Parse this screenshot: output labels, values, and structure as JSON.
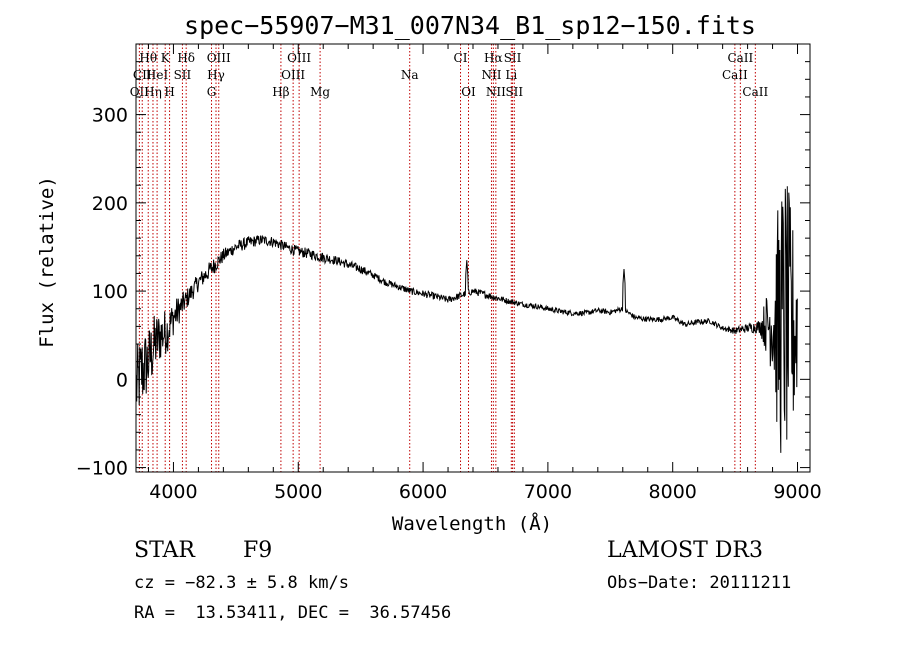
{
  "chart_data": {
    "type": "line",
    "title": "spec−55907−M31_007N34_B1_sp12−150.fits",
    "xlabel": "Wavelength (Å)",
    "ylabel": "Flux (relative)",
    "xlim": [
      3700,
      9100
    ],
    "ylim": [
      -105,
      380
    ],
    "x_ticks": [
      {
        "value": 4000,
        "label": "4000"
      },
      {
        "value": 5000,
        "label": "5000"
      },
      {
        "value": 6000,
        "label": "6000"
      },
      {
        "value": 7000,
        "label": "7000"
      },
      {
        "value": 8000,
        "label": "8000"
      },
      {
        "value": 9000,
        "label": "9000"
      }
    ],
    "y_ticks": [
      {
        "value": -100,
        "label": "−100"
      },
      {
        "value": 0,
        "label": "0"
      },
      {
        "value": 100,
        "label": "100"
      },
      {
        "value": 200,
        "label": "200"
      },
      {
        "value": 300,
        "label": "300"
      }
    ],
    "spectrum_anchors": {
      "x": [
        3700,
        3750,
        3800,
        3850,
        3900,
        3950,
        4000,
        4100,
        4200,
        4300,
        4400,
        4500,
        4600,
        4700,
        4800,
        4900,
        5000,
        5100,
        5200,
        5300,
        5400,
        5500,
        5600,
        5700,
        5800,
        5900,
        6000,
        6100,
        6200,
        6300,
        6400,
        6500,
        6600,
        6700,
        6800,
        6900,
        7000,
        7100,
        7200,
        7300,
        7400,
        7500,
        7600,
        7700,
        7800,
        7900,
        8000,
        8100,
        8200,
        8300,
        8400,
        8500,
        8600,
        8700,
        8800,
        8850,
        8900,
        8950,
        9000
      ],
      "y": [
        -10,
        10,
        20,
        40,
        50,
        55,
        70,
        90,
        110,
        125,
        140,
        150,
        155,
        158,
        156,
        150,
        145,
        142,
        138,
        135,
        130,
        125,
        118,
        110,
        105,
        100,
        97,
        94,
        90,
        95,
        100,
        96,
        92,
        88,
        85,
        83,
        80,
        77,
        75,
        75,
        78,
        76,
        80,
        70,
        68,
        68,
        70,
        62,
        65,
        66,
        58,
        55,
        58,
        60,
        65,
        60,
        70,
        55,
        60
      ],
      "noise_amplitude": [
        45,
        45,
        40,
        35,
        30,
        25,
        20,
        12,
        10,
        10,
        8,
        7,
        7,
        6,
        6,
        6,
        6,
        6,
        6,
        5,
        5,
        5,
        4,
        4,
        4,
        4,
        4,
        4,
        4,
        4,
        4,
        4,
        4,
        3,
        3,
        3,
        3,
        3,
        3,
        3,
        3,
        3,
        3,
        3,
        3,
        3,
        3,
        3,
        3,
        3,
        3,
        4,
        5,
        8,
        60,
        150,
        170,
        140,
        80
      ]
    },
    "spike_features": [
      {
        "x": 6350,
        "peak": 135
      },
      {
        "x": 7610,
        "peak": 125
      }
    ],
    "emission_lines": [
      {
        "x": 3727,
        "label": "OII",
        "row": 3
      },
      {
        "x": 3750,
        "label": "CII",
        "row": 2
      },
      {
        "x": 3798,
        "label": "Hθ",
        "row": 1
      },
      {
        "x": 3836,
        "label": "Hη",
        "row": 3
      },
      {
        "x": 3869,
        "label": "HeI",
        "row": 2
      },
      {
        "x": 3934,
        "label": "K",
        "row": 1
      },
      {
        "x": 3969,
        "label": "H",
        "row": 3
      },
      {
        "x": 4072,
        "label": "SII",
        "row": 2
      },
      {
        "x": 4102,
        "label": "Hδ",
        "row": 1
      },
      {
        "x": 4305,
        "label": "G",
        "row": 3
      },
      {
        "x": 4341,
        "label": "Hγ",
        "row": 2
      },
      {
        "x": 4363,
        "label": "OIII",
        "row": 1
      },
      {
        "x": 4861,
        "label": "Hβ",
        "row": 3
      },
      {
        "x": 4959,
        "label": "OIII",
        "row": 2
      },
      {
        "x": 5007,
        "label": "OIII",
        "row": 1
      },
      {
        "x": 5175,
        "label": "Mg",
        "row": 3
      },
      {
        "x": 5893,
        "label": "Na",
        "row": 2
      },
      {
        "x": 6300,
        "label": "CI",
        "row": 1
      },
      {
        "x": 6364,
        "label": "OI",
        "row": 3
      },
      {
        "x": 6548,
        "label": "NII",
        "row": 2
      },
      {
        "x": 6563,
        "label": "Hα",
        "row": 1
      },
      {
        "x": 6583,
        "label": "NII",
        "row": 3
      },
      {
        "x": 6707,
        "label": "Li",
        "row": 2
      },
      {
        "x": 6717,
        "label": "SII",
        "row": 1
      },
      {
        "x": 6731,
        "label": "SII",
        "row": 3
      },
      {
        "x": 8498,
        "label": "CaII",
        "row": 2
      },
      {
        "x": 8542,
        "label": "CaII",
        "row": 1
      },
      {
        "x": 8662,
        "label": "CaII",
        "row": 3
      }
    ]
  },
  "info": {
    "class": "STAR",
    "subclass": "F9",
    "survey": "LAMOST DR3",
    "cz": "cz = −82.3 ± 5.8 km/s",
    "obs_date": "Obs−Date: 20111211",
    "radec": "RA =  13.53411, DEC =  36.57456"
  },
  "colors": {
    "line_marker": "#c00000",
    "spectrum": "#000000",
    "axis": "#000000"
  }
}
